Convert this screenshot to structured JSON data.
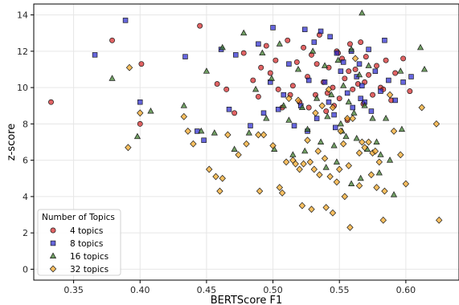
{
  "chart_data": {
    "type": "scatter",
    "xlabel": "BERTScore F1",
    "ylabel": "z-score",
    "xlim": [
      0.32,
      0.64
    ],
    "ylim": [
      -0.6,
      14.6
    ],
    "xticks": [
      "0.35",
      "0.40",
      "0.45",
      "0.50",
      "0.55",
      "0.60"
    ],
    "xtick_values": [
      0.35,
      0.4,
      0.45,
      0.5,
      0.55,
      0.6
    ],
    "yticks": [
      "0",
      "2",
      "4",
      "6",
      "8",
      "10",
      "12",
      "14"
    ],
    "ytick_values": [
      0,
      2,
      4,
      6,
      8,
      10,
      12,
      14
    ],
    "grid": true,
    "legend": {
      "title": "Number of Topics",
      "placement": "lower-left"
    },
    "series": [
      {
        "name": "4 topics",
        "marker": "circle",
        "color": "#d62728",
        "points": [
          [
            0.333,
            9.2
          ],
          [
            0.379,
            12.6
          ],
          [
            0.401,
            11.3
          ],
          [
            0.4,
            8.0
          ],
          [
            0.445,
            13.4
          ],
          [
            0.458,
            10.2
          ],
          [
            0.465,
            9.9
          ],
          [
            0.471,
            8.6
          ],
          [
            0.478,
            11.9
          ],
          [
            0.485,
            10.4
          ],
          [
            0.489,
            9.5
          ],
          [
            0.495,
            12.3
          ],
          [
            0.498,
            10.8
          ],
          [
            0.502,
            11.5
          ],
          [
            0.504,
            9.9
          ],
          [
            0.507,
            8.9
          ],
          [
            0.511,
            12.6
          ],
          [
            0.515,
            10.1
          ],
          [
            0.518,
            11.4
          ],
          [
            0.52,
            9.2
          ],
          [
            0.523,
            12.2
          ],
          [
            0.526,
            10.6
          ],
          [
            0.529,
            11.8
          ],
          [
            0.532,
            9.6
          ],
          [
            0.535,
            12.9
          ],
          [
            0.538,
            10.3
          ],
          [
            0.54,
            8.7
          ],
          [
            0.542,
            11.1
          ],
          [
            0.545,
            10.0
          ],
          [
            0.548,
            12.0
          ],
          [
            0.55,
            9.4
          ],
          [
            0.552,
            11.6
          ],
          [
            0.554,
            10.5
          ],
          [
            0.556,
            8.2
          ],
          [
            0.558,
            12.4
          ],
          [
            0.56,
            9.9
          ],
          [
            0.562,
            11.0
          ],
          [
            0.564,
            10.2
          ],
          [
            0.566,
            12.5
          ],
          [
            0.568,
            9.1
          ],
          [
            0.57,
            11.7
          ],
          [
            0.572,
            10.7
          ],
          [
            0.575,
            9.6
          ],
          [
            0.578,
            11.2
          ],
          [
            0.581,
            10.0
          ],
          [
            0.585,
            11.5
          ],
          [
            0.589,
            9.3
          ],
          [
            0.592,
            10.8
          ],
          [
            0.598,
            11.6
          ],
          [
            0.603,
            9.8
          ],
          [
            0.513,
            9.6
          ],
          [
            0.527,
            8.9
          ],
          [
            0.546,
            9.0
          ],
          [
            0.557,
            10.9
          ],
          [
            0.569,
            10.3
          ],
          [
            0.491,
            11.1
          ],
          [
            0.533,
            11.3
          ],
          [
            0.549,
            11.9
          ],
          [
            0.583,
            9.9
          ],
          [
            0.541,
            9.7
          ]
        ]
      },
      {
        "name": "8 topics",
        "marker": "square",
        "color": "#2b2bd0",
        "points": [
          [
            0.366,
            11.8
          ],
          [
            0.389,
            13.7
          ],
          [
            0.4,
            9.2
          ],
          [
            0.434,
            11.7
          ],
          [
            0.443,
            7.6
          ],
          [
            0.448,
            7.1
          ],
          [
            0.461,
            12.1
          ],
          [
            0.467,
            8.8
          ],
          [
            0.472,
            11.8
          ],
          [
            0.483,
            7.9
          ],
          [
            0.489,
            12.4
          ],
          [
            0.493,
            8.6
          ],
          [
            0.498,
            10.3
          ],
          [
            0.5,
            13.3
          ],
          [
            0.504,
            8.8
          ],
          [
            0.508,
            9.6
          ],
          [
            0.512,
            11.3
          ],
          [
            0.516,
            7.9
          ],
          [
            0.521,
            9.0
          ],
          [
            0.524,
            13.2
          ],
          [
            0.527,
            10.4
          ],
          [
            0.531,
            12.5
          ],
          [
            0.533,
            8.3
          ],
          [
            0.536,
            13.1
          ],
          [
            0.539,
            10.3
          ],
          [
            0.542,
            9.2
          ],
          [
            0.543,
            12.8
          ],
          [
            0.546,
            8.5
          ],
          [
            0.548,
            11.9
          ],
          [
            0.551,
            10.9
          ],
          [
            0.553,
            11.4
          ],
          [
            0.556,
            9.7
          ],
          [
            0.559,
            12.0
          ],
          [
            0.56,
            8.9
          ],
          [
            0.563,
            10.6
          ],
          [
            0.565,
            11.3
          ],
          [
            0.567,
            10.1
          ],
          [
            0.569,
            9.2
          ],
          [
            0.572,
            12.1
          ],
          [
            0.574,
            8.7
          ],
          [
            0.577,
            10.9
          ],
          [
            0.581,
            9.8
          ],
          [
            0.584,
            12.6
          ],
          [
            0.587,
            10.4
          ],
          [
            0.592,
            9.3
          ],
          [
            0.598,
            10.3
          ],
          [
            0.604,
            10.6
          ],
          [
            0.547,
            7.8
          ],
          [
            0.526,
            7.6
          ],
          [
            0.566,
            9.4
          ]
        ]
      },
      {
        "name": "16 topics",
        "marker": "triangle",
        "color": "#3a7a28",
        "points": [
          [
            0.379,
            10.5
          ],
          [
            0.398,
            7.3
          ],
          [
            0.408,
            8.7
          ],
          [
            0.433,
            9.0
          ],
          [
            0.446,
            7.6
          ],
          [
            0.45,
            10.9
          ],
          [
            0.456,
            7.5
          ],
          [
            0.462,
            12.2
          ],
          [
            0.471,
            6.6
          ],
          [
            0.478,
            13.0
          ],
          [
            0.482,
            7.5
          ],
          [
            0.487,
            9.9
          ],
          [
            0.492,
            11.9
          ],
          [
            0.495,
            8.3
          ],
          [
            0.499,
            10.5
          ],
          [
            0.501,
            6.6
          ],
          [
            0.505,
            12.4
          ],
          [
            0.508,
            9.0
          ],
          [
            0.512,
            8.2
          ],
          [
            0.515,
            6.3
          ],
          [
            0.519,
            11.0
          ],
          [
            0.522,
            8.9
          ],
          [
            0.526,
            7.7
          ],
          [
            0.53,
            12.0
          ],
          [
            0.533,
            9.4
          ],
          [
            0.536,
            7.0
          ],
          [
            0.539,
            11.2
          ],
          [
            0.541,
            8.4
          ],
          [
            0.544,
            9.6
          ],
          [
            0.546,
            6.8
          ],
          [
            0.549,
            11.5
          ],
          [
            0.551,
            8.0
          ],
          [
            0.553,
            10.1
          ],
          [
            0.555,
            7.3
          ],
          [
            0.557,
            9.2
          ],
          [
            0.559,
            12.1
          ],
          [
            0.561,
            8.6
          ],
          [
            0.563,
            7.2
          ],
          [
            0.565,
            10.7
          ],
          [
            0.567,
            14.1
          ],
          [
            0.569,
            9.0
          ],
          [
            0.572,
            11.2
          ],
          [
            0.575,
            8.3
          ],
          [
            0.578,
            7.0
          ],
          [
            0.581,
            6.3
          ],
          [
            0.585,
            8.3
          ],
          [
            0.588,
            6.0
          ],
          [
            0.591,
            4.1
          ],
          [
            0.596,
            10.9
          ],
          [
            0.611,
            12.2
          ],
          [
            0.614,
            11.0
          ],
          [
            0.58,
            5.3
          ],
          [
            0.571,
            6.6
          ],
          [
            0.548,
            5.9
          ],
          [
            0.524,
            6.5
          ],
          [
            0.552,
            7.6
          ],
          [
            0.54,
            5.6
          ],
          [
            0.566,
            5.0
          ],
          [
            0.597,
            7.7
          ],
          [
            0.559,
            4.7
          ]
        ]
      },
      {
        "name": "32 topics",
        "marker": "diamond",
        "color": "#f5a623",
        "points": [
          [
            0.391,
            6.7
          ],
          [
            0.392,
            11.1
          ],
          [
            0.4,
            8.6
          ],
          [
            0.433,
            8.4
          ],
          [
            0.436,
            7.6
          ],
          [
            0.44,
            6.9
          ],
          [
            0.452,
            5.5
          ],
          [
            0.457,
            5.1
          ],
          [
            0.46,
            4.3
          ],
          [
            0.462,
            5.0
          ],
          [
            0.466,
            7.4
          ],
          [
            0.474,
            6.3
          ],
          [
            0.48,
            6.9
          ],
          [
            0.489,
            7.4
          ],
          [
            0.49,
            4.3
          ],
          [
            0.493,
            7.4
          ],
          [
            0.5,
            6.8
          ],
          [
            0.505,
            4.5
          ],
          [
            0.507,
            4.2
          ],
          [
            0.51,
            5.9
          ],
          [
            0.512,
            9.4
          ],
          [
            0.515,
            6.0
          ],
          [
            0.517,
            5.8
          ],
          [
            0.519,
            9.3
          ],
          [
            0.52,
            5.5
          ],
          [
            0.522,
            3.5
          ],
          [
            0.523,
            5.8
          ],
          [
            0.526,
            7.1
          ],
          [
            0.528,
            5.9
          ],
          [
            0.529,
            3.3
          ],
          [
            0.531,
            5.5
          ],
          [
            0.532,
            8.6
          ],
          [
            0.534,
            6.5
          ],
          [
            0.535,
            5.2
          ],
          [
            0.537,
            9.0
          ],
          [
            0.539,
            6.1
          ],
          [
            0.54,
            3.4
          ],
          [
            0.542,
            9.9
          ],
          [
            0.543,
            5.1
          ],
          [
            0.545,
            8.9
          ],
          [
            0.545,
            3.1
          ],
          [
            0.548,
            4.8
          ],
          [
            0.55,
            5.5
          ],
          [
            0.551,
            7.6
          ],
          [
            0.553,
            6.9
          ],
          [
            0.554,
            4.0
          ],
          [
            0.557,
            5.7
          ],
          [
            0.558,
            2.3
          ],
          [
            0.56,
            8.3
          ],
          [
            0.562,
            11.6
          ],
          [
            0.565,
            4.6
          ],
          [
            0.567,
            7.0
          ],
          [
            0.569,
            6.7
          ],
          [
            0.572,
            7.0
          ],
          [
            0.574,
            5.2
          ],
          [
            0.575,
            6.4
          ],
          [
            0.578,
            4.5
          ],
          [
            0.58,
            5.9
          ],
          [
            0.583,
            2.7
          ],
          [
            0.584,
            4.3
          ],
          [
            0.588,
            9.6
          ],
          [
            0.591,
            7.6
          ],
          [
            0.596,
            6.3
          ],
          [
            0.6,
            4.7
          ],
          [
            0.612,
            8.9
          ],
          [
            0.623,
            8.0
          ],
          [
            0.625,
            2.7
          ],
          [
            0.556,
            8.3
          ],
          [
            0.565,
            6.4
          ],
          [
            0.577,
            6.5
          ]
        ]
      }
    ]
  }
}
